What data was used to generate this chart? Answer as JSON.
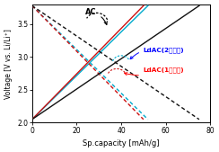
{
  "title": "",
  "xlabel": "Sp.capacity [mAh/g]",
  "ylabel": "Voltage [V vs. Li/Li⁺]",
  "xlim": [
    0,
    80
  ],
  "ylim": [
    2.0,
    3.8
  ],
  "yticks": [
    2.0,
    2.5,
    3.0,
    3.5
  ],
  "xticks": [
    0,
    20,
    40,
    60,
    80
  ],
  "ac_color": "#111111",
  "ldac1_color": "#cc1111",
  "ldac2_color": "#00aacc",
  "background_color": "#ffffff",
  "annotation_ac": "AC",
  "annotation_ldac2": "LdAC(2차년도)",
  "annotation_ldac1": "LdAC(1차년도)",
  "ac_cap": 75,
  "ldac1_cap": 50,
  "ldac2_cap": 52,
  "v_min": 2.05,
  "v_max": 3.78
}
